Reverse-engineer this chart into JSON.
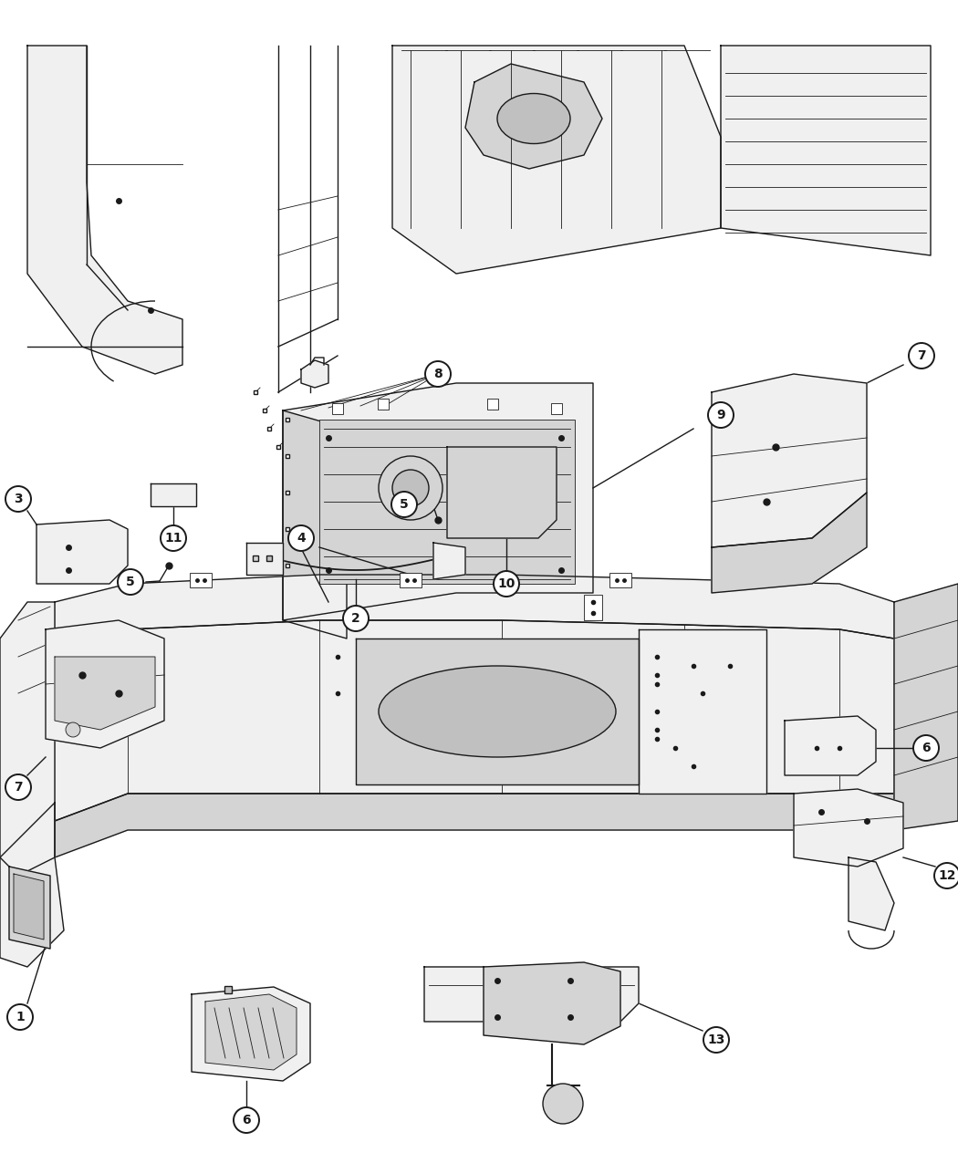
{
  "bg_color": "#ffffff",
  "line_color": "#1a1a1a",
  "fig_width": 10.5,
  "fig_height": 12.75,
  "number_fontsize": 10,
  "circle_r": 0.013,
  "lw_main": 1.0,
  "lw_thin": 0.6,
  "lw_thick": 1.4,
  "gray_fill": "#e8e8e8",
  "dark_gray": "#c0c0c0",
  "mid_gray": "#d4d4d4",
  "light_gray": "#f0f0f0"
}
